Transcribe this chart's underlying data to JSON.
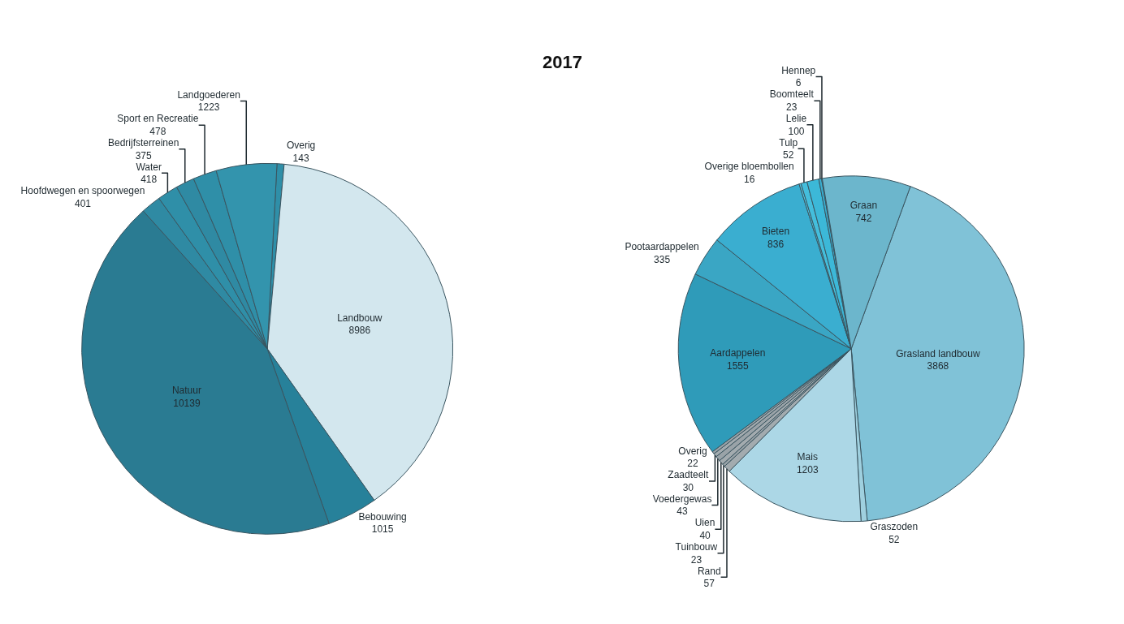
{
  "chart_data": [
    {
      "type": "pie",
      "title": "2017",
      "data_labels": true,
      "legend": false,
      "categories": [
        "Overig",
        "Landbouw",
        "Bebouwing",
        "Natuur",
        "Hoofdwegen en spoorwegen",
        "Water",
        "Bedrijfsterreinen",
        "Sport en Recreatie",
        "Landgoederen"
      ],
      "values": [
        143,
        8986,
        1015,
        10139,
        401,
        418,
        375,
        478,
        1223
      ],
      "colors": [
        "#2f8fa8",
        "#d3e7ee",
        "#27819a",
        "#2a7b92",
        "#2f8aa3",
        "#2f8fa8",
        "#2f8aa3",
        "#2f8fa8",
        "#3394ad"
      ]
    },
    {
      "type": "pie",
      "data_labels": true,
      "legend": false,
      "categories": [
        "Grasland landbouw",
        "Graszoden",
        "Mais",
        "Rand",
        "Tuinbouw",
        "Uien",
        "Voedergewas",
        "Zaadteelt",
        "Overig",
        "Aardappelen",
        "Pootaardappelen",
        "Bieten",
        "Overige bloembollen",
        "Tulp",
        "Lelie",
        "Boomteelt",
        "Hennep",
        "Graan"
      ],
      "values": [
        3868,
        52,
        1203,
        57,
        23,
        40,
        43,
        30,
        22,
        1555,
        335,
        836,
        16,
        52,
        100,
        23,
        6,
        742
      ],
      "colors": [
        "#80c2d7",
        "#9fd0df",
        "#acd7e6",
        "#a3abaf",
        "#9aa3a8",
        "#a3abaf",
        "#9aa3a8",
        "#a3abaf",
        "#9aa3a8",
        "#2f9bb9",
        "#3aa6c4",
        "#3aaed0",
        "#52c6e2",
        "#44bedc",
        "#3cb8d8",
        "#3aaed0",
        "#35a7c8",
        "#6cb6cc"
      ]
    }
  ]
}
